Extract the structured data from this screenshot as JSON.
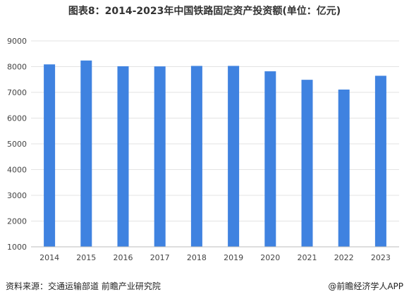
{
  "chart_data": {
    "type": "bar",
    "title": "图表8：2014-2023年中国铁路固定资产投资额(单位：亿元)",
    "categories": [
      "2014",
      "2015",
      "2016",
      "2017",
      "2018",
      "2019",
      "2020",
      "2021",
      "2022",
      "2023"
    ],
    "values": [
      8088,
      8238,
      8015,
      8010,
      8028,
      8029,
      7819,
      7489,
      7109,
      7645
    ],
    "ylim": [
      1000,
      9000
    ],
    "yticks": [
      1000,
      2000,
      3000,
      4000,
      5000,
      6000,
      7000,
      8000,
      9000
    ],
    "grid": true,
    "bar_color": "#3f82e0"
  },
  "footer": {
    "source": "资料来源：交通运输部道 前瞻产业研究院",
    "credit": "@前瞻经济学人APP"
  }
}
